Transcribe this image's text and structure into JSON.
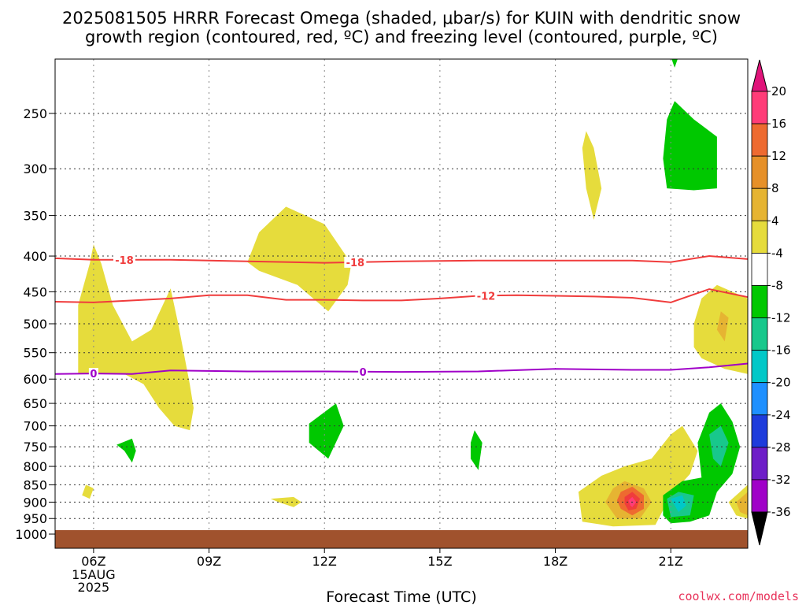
{
  "title_line1": "2025081505 HRRR Forecast Omega (shaded, μbar/s) for KUIN with dendritic snow",
  "title_line2": "growth region (contoured, red, ºC) and freezing level (contoured, purple, ºC)",
  "xlabel": "Forecast Time (UTC)",
  "credit": "coolwx.com/models",
  "colors": {
    "red_contour": "#f03c3c",
    "purple_contour": "#a000c8",
    "ground": "#a0522d",
    "credit": "#e8325a"
  },
  "chart_data": {
    "type": "heatmap",
    "x_ticks": [
      {
        "hour": 6,
        "label": "06Z",
        "sub": [
          "15AUG",
          "2025"
        ]
      },
      {
        "hour": 9,
        "label": "09Z"
      },
      {
        "hour": 12,
        "label": "12Z"
      },
      {
        "hour": 15,
        "label": "15Z"
      },
      {
        "hour": 18,
        "label": "18Z"
      },
      {
        "hour": 21,
        "label": "21Z"
      }
    ],
    "xlim": [
      5,
      23
    ],
    "y_ticks": [
      250,
      300,
      350,
      400,
      450,
      500,
      550,
      600,
      650,
      700,
      750,
      800,
      850,
      900,
      950,
      1000
    ],
    "ylim": [
      1000,
      200
    ],
    "y_scale": "log-pressure",
    "grid": true,
    "colorbar": {
      "labels": [
        "20",
        "16",
        "12",
        "8",
        "4",
        "-4",
        "-8",
        "-12",
        "-16",
        "-20",
        "-24",
        "-28",
        "-32",
        "-36"
      ],
      "colors": [
        "#ff3c78",
        "#ee6a30",
        "#e69028",
        "#e6b432",
        "#e6dc3c",
        "#ffffff",
        "#00c800",
        "#18c88c",
        "#00c8c8",
        "#1e90ff",
        "#1e3cdc",
        "#6e1ec8",
        "#a000c8",
        "#aaaaaa",
        "#000000",
        "#e0147a"
      ]
    },
    "contours": [
      {
        "name": "-18",
        "color": "#f03c3c",
        "points": [
          [
            5,
            403
          ],
          [
            6,
            405
          ],
          [
            8,
            405
          ],
          [
            10,
            407
          ],
          [
            12,
            409
          ],
          [
            14,
            407
          ],
          [
            16,
            406
          ],
          [
            18,
            406
          ],
          [
            20,
            406
          ],
          [
            21,
            408
          ],
          [
            22,
            400
          ],
          [
            23,
            404
          ]
        ],
        "labels": [
          {
            "hour": 6.8,
            "text": "-18"
          },
          {
            "hour": 12.8,
            "text": "-18"
          }
        ]
      },
      {
        "name": "-12",
        "color": "#f03c3c",
        "points": [
          [
            5,
            465
          ],
          [
            6,
            466
          ],
          [
            8,
            460
          ],
          [
            9,
            455
          ],
          [
            10,
            455
          ],
          [
            11,
            462
          ],
          [
            12,
            462
          ],
          [
            13,
            463
          ],
          [
            14,
            463
          ],
          [
            15,
            460
          ],
          [
            16,
            456
          ],
          [
            17,
            455
          ],
          [
            18,
            456
          ],
          [
            19,
            457
          ],
          [
            20,
            459
          ],
          [
            21,
            466
          ],
          [
            22,
            446
          ],
          [
            23,
            458
          ]
        ],
        "labels": [
          {
            "hour": 16.2,
            "text": "-12"
          }
        ]
      },
      {
        "name": "0",
        "color": "#a000c8",
        "points": [
          [
            5,
            590
          ],
          [
            6,
            589
          ],
          [
            7,
            590
          ],
          [
            8,
            583
          ],
          [
            10,
            585
          ],
          [
            12,
            585
          ],
          [
            14,
            586
          ],
          [
            16,
            585
          ],
          [
            18,
            580
          ],
          [
            20,
            582
          ],
          [
            21,
            582
          ],
          [
            22,
            577
          ],
          [
            23,
            570
          ]
        ],
        "labels": [
          {
            "hour": 6.0,
            "text": "0"
          },
          {
            "hour": 13.0,
            "text": "0"
          }
        ]
      }
    ],
    "shaded_regions": [
      {
        "level": "4",
        "color": "#e6dc3c",
        "points": [
          [
            5.6,
            590
          ],
          [
            5.6,
            470
          ],
          [
            5.9,
            410
          ],
          [
            6.0,
            385
          ],
          [
            6.2,
            410
          ],
          [
            6.5,
            470
          ],
          [
            7,
            530
          ],
          [
            7.5,
            510
          ],
          [
            8,
            445
          ],
          [
            8.2,
            500
          ],
          [
            8.5,
            610
          ],
          [
            8.6,
            660
          ],
          [
            8.5,
            710
          ],
          [
            8.1,
            700
          ],
          [
            7.7,
            660
          ],
          [
            7.3,
            610
          ],
          [
            6.8,
            590
          ]
        ]
      },
      {
        "level": "4",
        "color": "#e6dc3c",
        "points": [
          [
            5.8,
            850
          ],
          [
            6.0,
            860
          ],
          [
            5.9,
            890
          ],
          [
            5.7,
            880
          ]
        ]
      },
      {
        "level": "4",
        "color": "#e6dc3c",
        "points": [
          [
            10.0,
            408
          ],
          [
            10.3,
            370
          ],
          [
            11.0,
            340
          ],
          [
            12.0,
            360
          ],
          [
            12.7,
            410
          ],
          [
            12.6,
            440
          ],
          [
            12.1,
            480
          ],
          [
            11.3,
            440
          ],
          [
            10.3,
            420
          ]
        ]
      },
      {
        "level": "4",
        "color": "#e6dc3c",
        "points": [
          [
            10.6,
            890
          ],
          [
            11.2,
            885
          ],
          [
            11.4,
            900
          ],
          [
            11.2,
            915
          ],
          [
            10.8,
            900
          ]
        ]
      },
      {
        "level": "4",
        "color": "#e6dc3c",
        "points": [
          [
            16.5,
            990
          ],
          [
            17.0,
            988
          ],
          [
            17.3,
            992
          ],
          [
            16.8,
            994
          ]
        ]
      },
      {
        "level": "4",
        "color": "#e6dc3c",
        "points": [
          [
            18.8,
            265
          ],
          [
            19.0,
            280
          ],
          [
            19.2,
            320
          ],
          [
            19.0,
            355
          ],
          [
            18.8,
            320
          ],
          [
            18.7,
            280
          ]
        ]
      },
      {
        "level": "4",
        "color": "#e6dc3c",
        "points": [
          [
            18.6,
            870
          ],
          [
            19.2,
            825
          ],
          [
            19.8,
            800
          ],
          [
            20.5,
            780
          ],
          [
            21.0,
            720
          ],
          [
            21.3,
            700
          ],
          [
            21.7,
            760
          ],
          [
            21.5,
            820
          ],
          [
            21.0,
            880
          ],
          [
            20.6,
            970
          ],
          [
            19.5,
            975
          ],
          [
            18.7,
            960
          ]
        ]
      },
      {
        "level": "4",
        "color": "#e6dc3c",
        "points": [
          [
            21.6,
            500
          ],
          [
            21.8,
            460
          ],
          [
            22.2,
            440
          ],
          [
            22.6,
            450
          ],
          [
            23.0,
            460
          ],
          [
            23.0,
            590
          ],
          [
            22.4,
            580
          ],
          [
            21.8,
            560
          ],
          [
            21.6,
            540
          ]
        ]
      },
      {
        "level": "4",
        "color": "#e6dc3c",
        "points": [
          [
            22.8,
            870
          ],
          [
            23.0,
            850
          ],
          [
            23.0,
            950
          ],
          [
            22.7,
            940
          ],
          [
            22.5,
            900
          ]
        ]
      },
      {
        "level": "8",
        "color": "#e6b432",
        "points": [
          [
            22.3,
            480
          ],
          [
            22.5,
            490
          ],
          [
            22.4,
            530
          ],
          [
            22.2,
            510
          ]
        ]
      },
      {
        "level": "8",
        "color": "#e6b432",
        "points": [
          [
            19.5,
            860
          ],
          [
            19.8,
            840
          ],
          [
            20.3,
            860
          ],
          [
            20.5,
            900
          ],
          [
            20.2,
            950
          ],
          [
            19.6,
            950
          ],
          [
            19.3,
            900
          ]
        ]
      },
      {
        "level": "8",
        "color": "#e6b432",
        "points": [
          [
            22.9,
            880
          ],
          [
            23.0,
            870
          ],
          [
            23.0,
            940
          ],
          [
            22.8,
            930
          ],
          [
            22.7,
            900
          ]
        ]
      },
      {
        "level": "12",
        "color": "#ee6a30",
        "points": [
          [
            19.7,
            870
          ],
          [
            20.0,
            855
          ],
          [
            20.3,
            880
          ],
          [
            20.3,
            920
          ],
          [
            20.0,
            940
          ],
          [
            19.7,
            920
          ],
          [
            19.6,
            895
          ]
        ]
      },
      {
        "level": "16",
        "color": "#f03c3c",
        "points": [
          [
            19.8,
            885
          ],
          [
            20.0,
            870
          ],
          [
            20.2,
            890
          ],
          [
            20.1,
            920
          ],
          [
            19.9,
            925
          ],
          [
            19.8,
            905
          ]
        ]
      },
      {
        "level": "20",
        "color": "#ff3c78",
        "points": [
          [
            19.9,
            895
          ],
          [
            20.0,
            885
          ],
          [
            20.1,
            900
          ],
          [
            20.0,
            915
          ],
          [
            19.95,
            910
          ]
        ]
      },
      {
        "level": "-4",
        "color": "#00c800",
        "points": [
          [
            20.9,
            200
          ],
          [
            21.3,
            200
          ],
          [
            21.1,
            215
          ]
        ]
      },
      {
        "level": "-4",
        "color": "#00c800",
        "points": [
          [
            20.9,
            255
          ],
          [
            21.1,
            240
          ],
          [
            21.6,
            255
          ],
          [
            22.2,
            270
          ],
          [
            22.2,
            320
          ],
          [
            21.6,
            322
          ],
          [
            20.9,
            320
          ],
          [
            20.8,
            290
          ]
        ]
      },
      {
        "level": "-4",
        "color": "#00c800",
        "points": [
          [
            6.6,
            745
          ],
          [
            7.0,
            730
          ],
          [
            7.1,
            760
          ],
          [
            7.0,
            790
          ],
          [
            6.8,
            760
          ]
        ]
      },
      {
        "level": "-4",
        "color": "#00c800",
        "points": [
          [
            11.6,
            695
          ],
          [
            12.3,
            650
          ],
          [
            12.5,
            700
          ],
          [
            12.1,
            780
          ],
          [
            11.6,
            740
          ]
        ]
      },
      {
        "level": "-4",
        "color": "#00c800",
        "points": [
          [
            15.8,
            740
          ],
          [
            15.9,
            710
          ],
          [
            16.1,
            740
          ],
          [
            16.0,
            810
          ],
          [
            15.8,
            780
          ]
        ]
      },
      {
        "level": "-4",
        "color": "#00c800",
        "points": [
          [
            20.8,
            880
          ],
          [
            21.3,
            840
          ],
          [
            21.8,
            830
          ],
          [
            21.7,
            740
          ],
          [
            22.0,
            670
          ],
          [
            22.3,
            650
          ],
          [
            22.6,
            690
          ],
          [
            22.8,
            750
          ],
          [
            22.6,
            820
          ],
          [
            22.2,
            870
          ],
          [
            22.0,
            940
          ],
          [
            21.5,
            960
          ],
          [
            21.0,
            965
          ],
          [
            20.8,
            940
          ]
        ]
      },
      {
        "level": "-8",
        "color": "#18c88c",
        "points": [
          [
            22.0,
            720
          ],
          [
            22.3,
            700
          ],
          [
            22.5,
            740
          ],
          [
            22.3,
            800
          ],
          [
            22.1,
            780
          ]
        ]
      },
      {
        "level": "-8",
        "color": "#18c88c",
        "points": [
          [
            20.9,
            890
          ],
          [
            21.2,
            870
          ],
          [
            21.6,
            880
          ],
          [
            21.5,
            940
          ],
          [
            21.0,
            945
          ]
        ]
      },
      {
        "level": "-12",
        "color": "#00c8c8",
        "points": [
          [
            21.0,
            890
          ],
          [
            21.3,
            880
          ],
          [
            21.4,
            910
          ],
          [
            21.2,
            930
          ]
        ]
      }
    ]
  }
}
